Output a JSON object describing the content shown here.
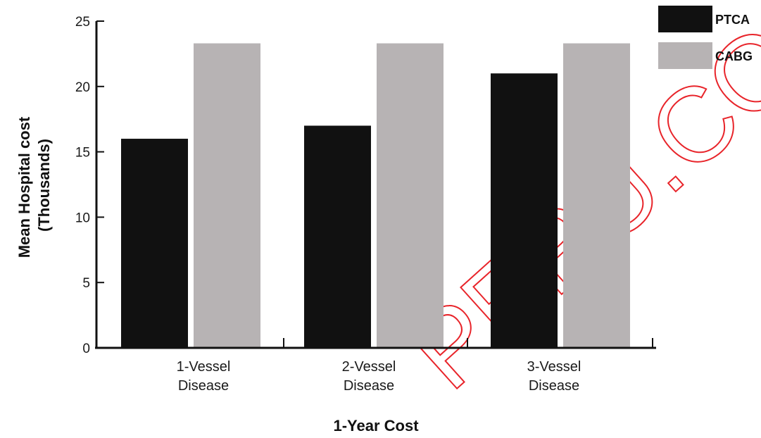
{
  "chart_data": {
    "type": "bar",
    "title": "",
    "xlabel": "1-Year Cost",
    "ylabel": "Mean Hospital cost (Thousands)",
    "ylabel_lines": [
      "Mean Hospital cost",
      "(Thousands)"
    ],
    "ylim": [
      0,
      25
    ],
    "yticks": [
      0,
      5,
      10,
      15,
      20,
      25
    ],
    "categories": [
      "1-Vessel Disease",
      "2-Vessel Disease",
      "3-Vessel Disease"
    ],
    "category_lines": [
      [
        "1-Vessel",
        "Disease"
      ],
      [
        "2-Vessel",
        "Disease"
      ],
      [
        "3-Vessel",
        "Disease"
      ]
    ],
    "series": [
      {
        "name": "PTCA",
        "color": "#111111",
        "values": [
          16,
          17,
          21
        ]
      },
      {
        "name": "CABG",
        "color": "#b7b3b4",
        "values": [
          23.3,
          23.3,
          23.3
        ]
      }
    ],
    "legend_position": "top-right",
    "grid": false
  },
  "watermark": {
    "text": "PERU.CO",
    "color": "#e8242a"
  }
}
